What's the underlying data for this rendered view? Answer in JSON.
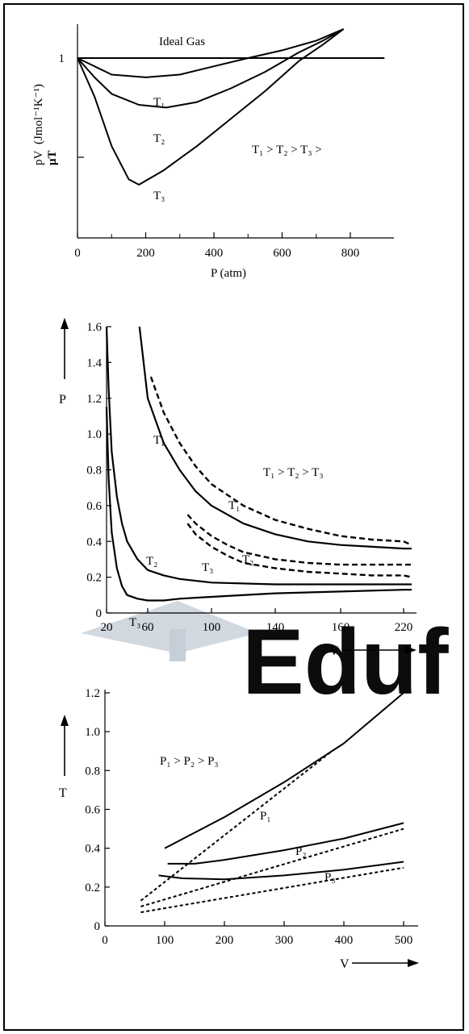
{
  "watermark": {
    "text": "Eduf",
    "color": "#2aa9e0",
    "accent": "#f6b93b"
  },
  "chart_data": [
    {
      "type": "line",
      "xlabel": "P (atm)",
      "ylabel": "pV / μT (J mol⁻¹ K⁻¹)",
      "ylabel_line1": "pV",
      "ylabel_line2": "μT",
      "ylabel_unit": "(Jmol⁻¹K⁻¹)",
      "x_ticks": [
        "0",
        "200",
        "400",
        "600",
        "800"
      ],
      "y_ticks": [
        "1"
      ],
      "xlim": [
        0,
        900
      ],
      "ylim": [
        0,
        1.15
      ],
      "annotation": "T₁ > T₂ > T₃ >",
      "series": [
        {
          "name": "Ideal Gas",
          "style": "solid",
          "x": [
            0,
            900
          ],
          "y": [
            1.0,
            1.0
          ]
        },
        {
          "name": "T₁",
          "style": "solid",
          "x": [
            0,
            100,
            200,
            300,
            400,
            500,
            600,
            700,
            780
          ],
          "y": [
            1.0,
            0.94,
            0.93,
            0.94,
            0.97,
            1.0,
            1.04,
            1.09,
            1.15
          ]
        },
        {
          "name": "T₂",
          "style": "solid",
          "x": [
            0,
            50,
            100,
            180,
            260,
            350,
            450,
            550,
            650,
            720,
            780
          ],
          "y": [
            1.0,
            0.93,
            0.87,
            0.83,
            0.82,
            0.84,
            0.89,
            0.95,
            1.03,
            1.09,
            1.15
          ]
        },
        {
          "name": "T₃",
          "style": "solid",
          "x": [
            0,
            50,
            100,
            150,
            180,
            250,
            350,
            450,
            550,
            650,
            720,
            780
          ],
          "y": [
            1.0,
            0.86,
            0.68,
            0.56,
            0.54,
            0.59,
            0.68,
            0.78,
            0.88,
            0.99,
            1.07,
            1.15
          ]
        }
      ]
    },
    {
      "type": "line",
      "xlabel": "V",
      "ylabel": "P",
      "x_ticks": [
        "20",
        "60",
        "100",
        "140",
        "160",
        "220"
      ],
      "y_ticks": [
        "0",
        "0.2",
        "0.4",
        "0.6",
        "0.8",
        "1.0",
        "1.2",
        "1.4",
        "1.6"
      ],
      "ylim": [
        0,
        1.6
      ],
      "annotation": "T₁ > T₂ > T₃",
      "series": [
        {
          "name": "T₁",
          "style": "solid",
          "x": [
            52,
            60,
            70,
            80,
            90,
            100,
            120,
            140,
            160,
            180,
            200,
            220,
            240
          ],
          "y": [
            1.6,
            1.2,
            0.95,
            0.8,
            0.68,
            0.6,
            0.5,
            0.44,
            0.4,
            0.38,
            0.37,
            0.36,
            0.36
          ]
        },
        {
          "name": "T₁",
          "style": "dashed",
          "x": [
            62,
            70,
            80,
            90,
            100,
            120,
            140,
            160,
            180,
            200,
            220,
            240
          ],
          "y": [
            1.32,
            1.12,
            0.95,
            0.82,
            0.72,
            0.6,
            0.52,
            0.47,
            0.43,
            0.41,
            0.4,
            0.38
          ]
        },
        {
          "name": "T₂",
          "style": "solid",
          "x": [
            20,
            22,
            25,
            30,
            35,
            40,
            50,
            60,
            70,
            80,
            100,
            140,
            180,
            220,
            240
          ],
          "y": [
            1.6,
            1.25,
            0.9,
            0.65,
            0.5,
            0.4,
            0.3,
            0.24,
            0.21,
            0.19,
            0.17,
            0.16,
            0.16,
            0.16,
            0.16
          ]
        },
        {
          "name": "T₂",
          "style": "dashed",
          "x": [
            85,
            90,
            100,
            110,
            120,
            140,
            160,
            180,
            200,
            220,
            240
          ],
          "y": [
            0.55,
            0.5,
            0.43,
            0.38,
            0.34,
            0.3,
            0.28,
            0.27,
            0.27,
            0.27,
            0.27
          ]
        },
        {
          "name": "T₃",
          "style": "solid",
          "x": [
            20,
            22,
            25,
            30,
            35,
            40,
            50,
            60,
            70,
            80,
            100,
            140,
            180,
            220,
            240
          ],
          "y": [
            1.15,
            0.75,
            0.45,
            0.25,
            0.15,
            0.1,
            0.08,
            0.07,
            0.07,
            0.08,
            0.09,
            0.11,
            0.12,
            0.13,
            0.13
          ]
        },
        {
          "name": "T₃",
          "style": "dashed",
          "x": [
            85,
            90,
            100,
            110,
            120,
            140,
            160,
            180,
            200,
            220,
            240
          ],
          "y": [
            0.5,
            0.44,
            0.37,
            0.32,
            0.28,
            0.25,
            0.23,
            0.22,
            0.21,
            0.21,
            0.2
          ]
        }
      ]
    },
    {
      "type": "line",
      "xlabel": "V",
      "ylabel": "T",
      "x_ticks": [
        "0",
        "100",
        "200",
        "300",
        "400",
        "500"
      ],
      "y_ticks": [
        "0",
        "0.2",
        "0.4",
        "0.6",
        "0.8",
        "1.0",
        "1.2"
      ],
      "xlim": [
        0,
        550
      ],
      "ylim": [
        0,
        1.3
      ],
      "annotation": "P₁ > P₂ > P₃",
      "series": [
        {
          "name": "P₁",
          "style": "solid",
          "x": [
            100,
            200,
            300,
            400,
            500
          ],
          "y": [
            0.4,
            0.56,
            0.74,
            0.94,
            1.2
          ]
        },
        {
          "name": "P₁",
          "style": "dashed",
          "x": [
            60,
            380
          ],
          "y": [
            0.13,
            0.9
          ]
        },
        {
          "name": "P₂",
          "style": "solid",
          "x": [
            105,
            150,
            200,
            300,
            400,
            500
          ],
          "y": [
            0.32,
            0.32,
            0.34,
            0.39,
            0.45,
            0.53
          ]
        },
        {
          "name": "P₂",
          "style": "dashed",
          "x": [
            60,
            500
          ],
          "y": [
            0.1,
            0.5
          ]
        },
        {
          "name": "P₃",
          "style": "solid",
          "x": [
            90,
            130,
            200,
            300,
            400,
            500
          ],
          "y": [
            0.26,
            0.245,
            0.24,
            0.26,
            0.29,
            0.33
          ]
        },
        {
          "name": "P₃",
          "style": "dashed",
          "x": [
            60,
            500
          ],
          "y": [
            0.07,
            0.3
          ]
        }
      ]
    }
  ]
}
